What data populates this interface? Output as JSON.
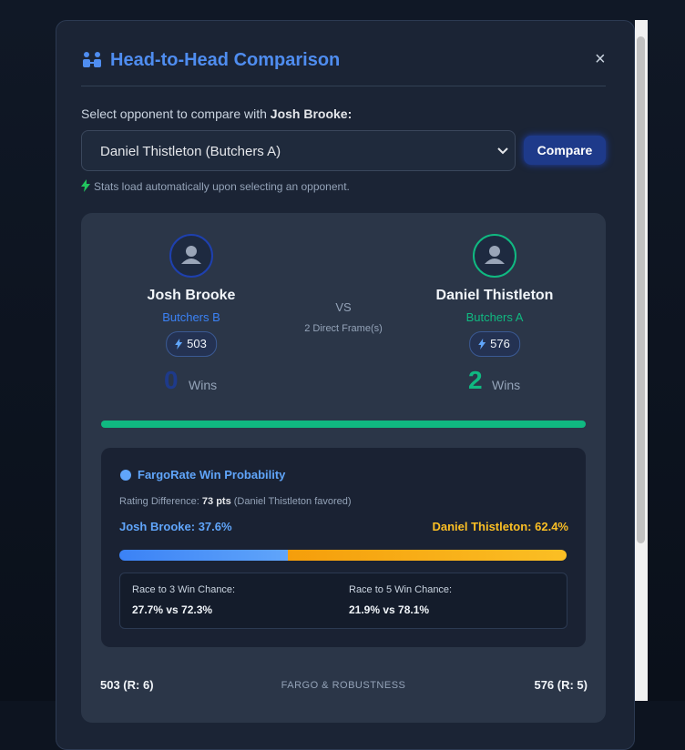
{
  "modal": {
    "title": "Head-to-Head Comparison",
    "close": "×",
    "select_label": "Select opponent to compare with ",
    "select_player": "Josh Brooke:",
    "selected_option": "Daniel Thistleton (Butchers A)",
    "button": "Compare",
    "hint": "Stats load automatically upon selecting an opponent.",
    "player1": {
      "name": "Josh Brooke",
      "team": "Butchers B",
      "rating": "503",
      "wins": "0",
      "wins_label": "Wins"
    },
    "player2": {
      "name": "Daniel Thistleton",
      "team": "Butchers A",
      "rating": "576",
      "wins": "2",
      "wins_label": "Wins"
    },
    "vs": "VS",
    "frames": "2 Direct Frame(s)",
    "fargo": {
      "title": "FargoRate Win Probability",
      "diff_label": "Rating Difference: ",
      "diff_value": "73 pts",
      "diff_note": " (Daniel Thistleton favored)",
      "p1_label": "Josh Brooke: ",
      "p1_value": "37.6%",
      "p2_label": "Daniel Thistleton: ",
      "p2_value": "62.4%",
      "race3_label": "Race to 3 Win Chance:",
      "race3_value": "27.7% vs 72.3%",
      "race5_label": "Race to 5 Win Chance:",
      "race5_value": "21.9% vs 78.1%"
    },
    "footer": {
      "left": "503 (R: 6)",
      "center": "FARGO & ROBUSTNESS",
      "right": "576 (R: 5)"
    }
  }
}
